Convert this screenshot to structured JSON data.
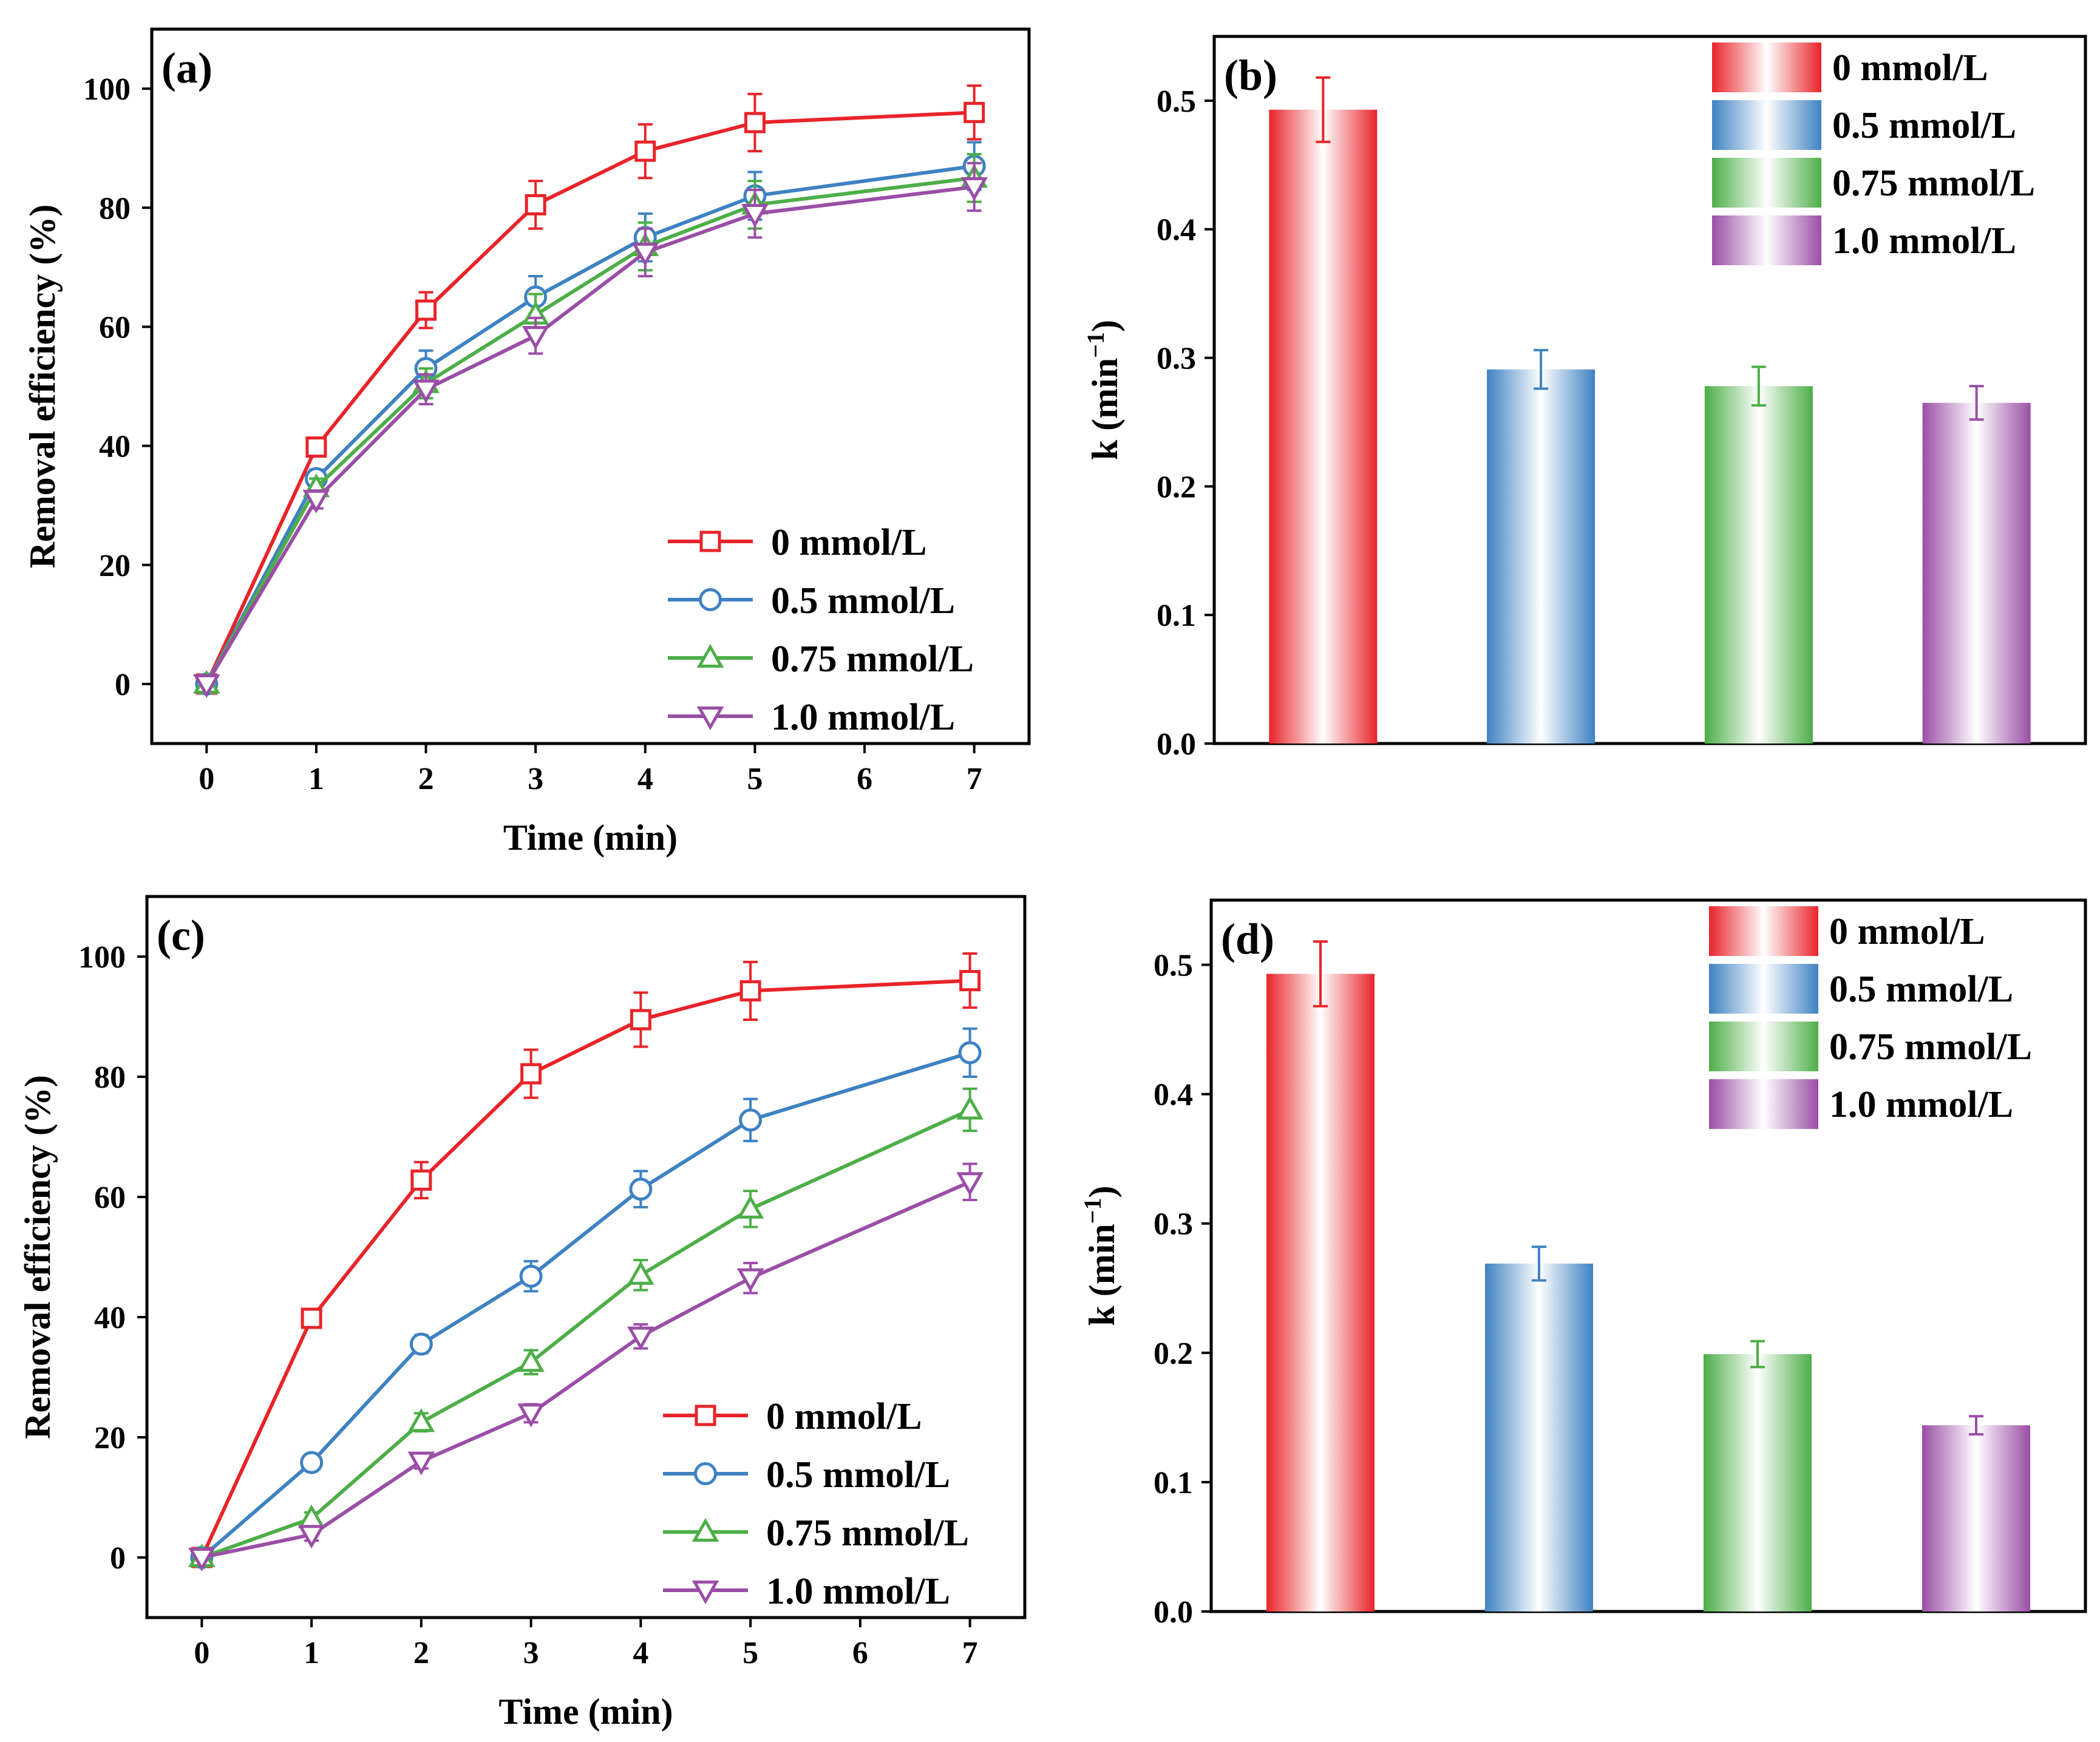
{
  "chart_data": [
    {
      "panel": "(a)",
      "type": "line",
      "xlabel": "Time (min)",
      "ylabel": "Removal efficiency (%)",
      "xlim": [
        -0.5,
        7.5
      ],
      "ylim": [
        -10,
        110
      ],
      "xticks": [
        0,
        1,
        2,
        3,
        4,
        5,
        6,
        7
      ],
      "yticks": [
        0,
        20,
        40,
        60,
        80,
        100
      ],
      "legend_position": "bottom-right",
      "x": [
        0,
        1,
        2,
        3,
        4,
        5,
        7
      ],
      "series": [
        {
          "name": "0 mmol/L",
          "color": "#e8242a",
          "marker": "square",
          "values": [
            0,
            39.8,
            62.8,
            80.5,
            89.5,
            94.3,
            96
          ],
          "errors": [
            0,
            1.5,
            3,
            4,
            4.5,
            4.8,
            4.5
          ]
        },
        {
          "name": "0.5 mmol/L",
          "color": "#3e82c2",
          "marker": "circle",
          "values": [
            0,
            34.5,
            53,
            65,
            75,
            82,
            87
          ],
          "errors": [
            0,
            1.5,
            3,
            3.5,
            4,
            4,
            4
          ]
        },
        {
          "name": "0.75 mmol/L",
          "color": "#4dae48",
          "marker": "triangle-up",
          "values": [
            0,
            33,
            50.5,
            62,
            73.5,
            80.5,
            85
          ],
          "errors": [
            0,
            1.5,
            2.5,
            3.5,
            4,
            4,
            4
          ]
        },
        {
          "name": "1.0 mmol/L",
          "color": "#9a4ea6",
          "marker": "triangle-down",
          "values": [
            0,
            31,
            49.5,
            58.5,
            72.5,
            79,
            83.5
          ],
          "errors": [
            0,
            1.5,
            2.5,
            3,
            4,
            4,
            4
          ]
        }
      ]
    },
    {
      "panel": "(b)",
      "type": "bar",
      "ylabel": "k (min",
      "ylabel_sup": "−1",
      "ylabel_close": ")",
      "ylim": [
        0,
        0.55
      ],
      "yticks": [
        "0.0",
        "0.1",
        "0.2",
        "0.3",
        "0.4",
        "0.5"
      ],
      "legend_position": "top-right",
      "categories": [
        "0 mmol/L",
        "0.5 mmol/L",
        "0.75 mmol/L",
        "1.0 mmol/L"
      ],
      "colors": [
        "#e8242a",
        "#3e82c2",
        "#4dae48",
        "#9a4ea6"
      ],
      "values": [
        0.493,
        0.291,
        0.278,
        0.265
      ],
      "errors": [
        0.025,
        0.015,
        0.015,
        0.013
      ]
    },
    {
      "panel": "(c)",
      "type": "line",
      "xlabel": "Time (min)",
      "ylabel": "Removal efficiency (%)",
      "xlim": [
        -0.5,
        7.5
      ],
      "ylim": [
        -10,
        110
      ],
      "xticks": [
        0,
        1,
        2,
        3,
        4,
        5,
        6,
        7
      ],
      "yticks": [
        0,
        20,
        40,
        60,
        80,
        100
      ],
      "legend_position": "bottom-right",
      "x": [
        0,
        1,
        2,
        3,
        4,
        5,
        7
      ],
      "series": [
        {
          "name": "0 mmol/L",
          "color": "#e8242a",
          "marker": "square",
          "values": [
            0,
            39.8,
            62.8,
            80.5,
            89.5,
            94.3,
            96
          ],
          "errors": [
            0,
            1.5,
            3,
            4,
            4.5,
            4.8,
            4.5
          ]
        },
        {
          "name": "0.5 mmol/L",
          "color": "#3e82c2",
          "marker": "circle",
          "values": [
            0,
            15.8,
            35.5,
            46.8,
            61.3,
            72.8,
            84
          ],
          "errors": [
            0,
            1.2,
            1.5,
            2.5,
            3,
            3.5,
            4
          ]
        },
        {
          "name": "0.75 mmol/L",
          "color": "#4dae48",
          "marker": "triangle-up",
          "values": [
            0,
            6.5,
            22.5,
            32.5,
            47,
            58,
            74.5
          ],
          "errors": [
            0,
            1,
            1.5,
            2,
            2.5,
            3,
            3.5
          ]
        },
        {
          "name": "1.0 mmol/L",
          "color": "#9a4ea6",
          "marker": "triangle-down",
          "values": [
            0,
            3.8,
            16,
            24,
            36.8,
            46.5,
            62.5
          ],
          "errors": [
            0,
            1,
            1.2,
            1.5,
            2,
            2.5,
            3
          ]
        }
      ]
    },
    {
      "panel": "(d)",
      "type": "bar",
      "ylabel": "k (min",
      "ylabel_sup": "−1",
      "ylabel_close": ")",
      "ylim": [
        0,
        0.55
      ],
      "yticks": [
        "0.0",
        "0.1",
        "0.2",
        "0.3",
        "0.4",
        "0.5"
      ],
      "legend_position": "top-right",
      "categories": [
        "0 mmol/L",
        "0.5 mmol/L",
        "0.75 mmol/L",
        "1.0 mmol/L"
      ],
      "colors": [
        "#e8242a",
        "#3e82c2",
        "#4dae48",
        "#9a4ea6"
      ],
      "values": [
        0.493,
        0.269,
        0.199,
        0.144
      ],
      "errors": [
        0.025,
        0.013,
        0.01,
        0.007
      ]
    }
  ]
}
